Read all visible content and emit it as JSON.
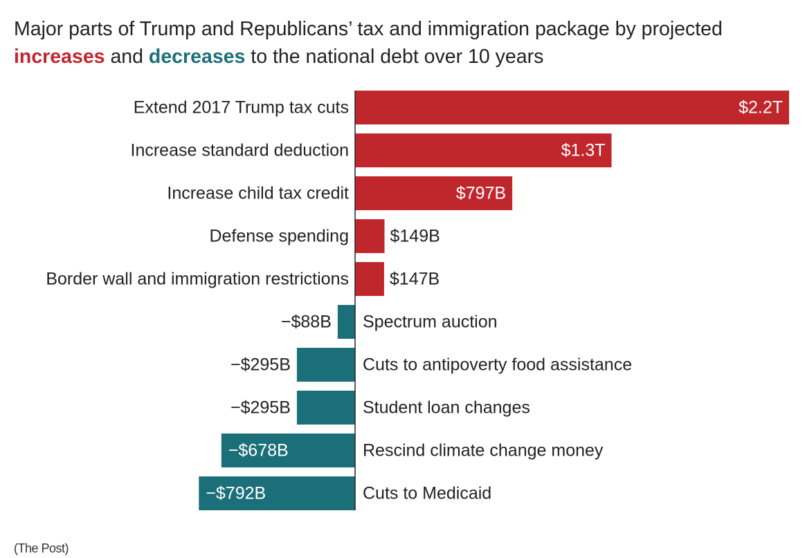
{
  "title": {
    "line1": "Major parts of Trump and Republicans’ tax and immigration package by projected",
    "increases": "increases",
    "and": " and ",
    "decreases": "decreases",
    "rest": " to the national debt over 10 years"
  },
  "source": "(The Post)",
  "colors": {
    "increase": "#c0272d",
    "decrease": "#1b6f78",
    "axis": "#222222"
  },
  "chart_data": {
    "type": "bar",
    "orientation": "horizontal",
    "unit": "billions of dollars",
    "categories": [
      "Extend 2017 Trump tax cuts",
      "Increase standard deduction",
      "Increase child tax credit",
      "Defense spending",
      "Border wall and immigration restrictions",
      "Spectrum auction",
      "Cuts to antipoverty food assistance",
      "Student loan changes",
      "Rescind climate change money",
      "Cuts to Medicaid"
    ],
    "values": [
      2200,
      1300,
      797,
      149,
      147,
      -88,
      -295,
      -295,
      -678,
      -792
    ],
    "value_labels": [
      "$2.2T",
      "$1.3T",
      "$797B",
      "$149B",
      "$147B",
      "−$88B",
      "−$295B",
      "−$295B",
      "−$678B",
      "−$792B"
    ]
  }
}
